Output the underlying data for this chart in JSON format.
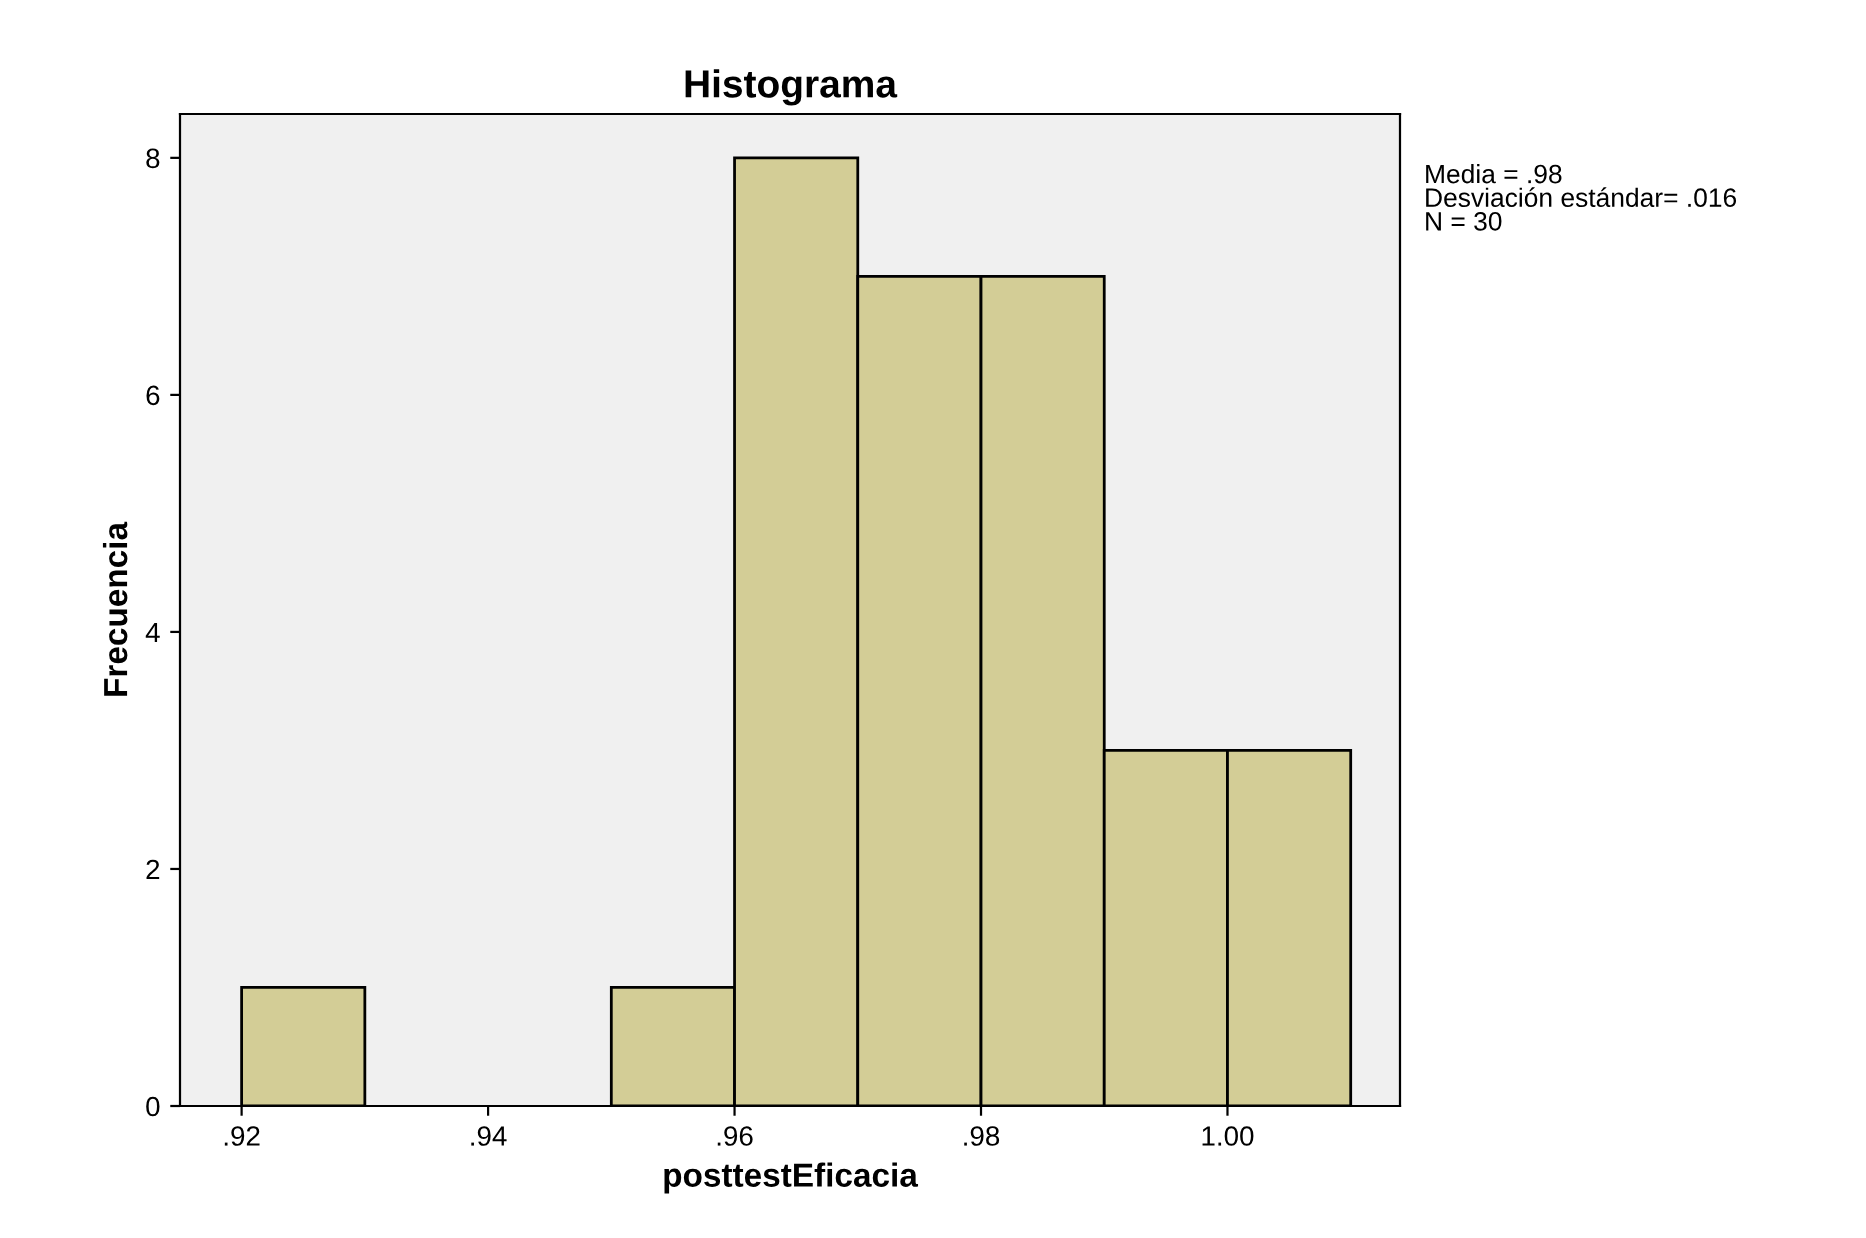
{
  "chart_data": {
    "type": "histogram",
    "title": "Histograma",
    "xlabel": "posttestEficacia",
    "ylabel": "Frecuencia",
    "bins": [
      0.92,
      0.93,
      0.94,
      0.95,
      0.96,
      0.97,
      0.98,
      0.99,
      1.0,
      1.01
    ],
    "values": [
      1,
      0,
      0,
      1,
      8,
      7,
      7,
      3,
      3
    ],
    "color": "#d3cd96",
    "xlim": [
      0.915,
      1.014
    ],
    "xticks": [
      {
        "value": 0.92,
        "label": ".92"
      },
      {
        "value": 0.94,
        "label": ".94"
      },
      {
        "value": 0.96,
        "label": ".96"
      },
      {
        "value": 0.98,
        "label": ".98"
      },
      {
        "value": 1.0,
        "label": "1.00"
      }
    ],
    "ylim": [
      0,
      8.37
    ],
    "yticks": [
      0,
      2,
      4,
      6,
      8
    ],
    "grid": false,
    "annotations": [
      "Media = .98\nDesviación estándar= .016\nN = 30"
    ]
  }
}
